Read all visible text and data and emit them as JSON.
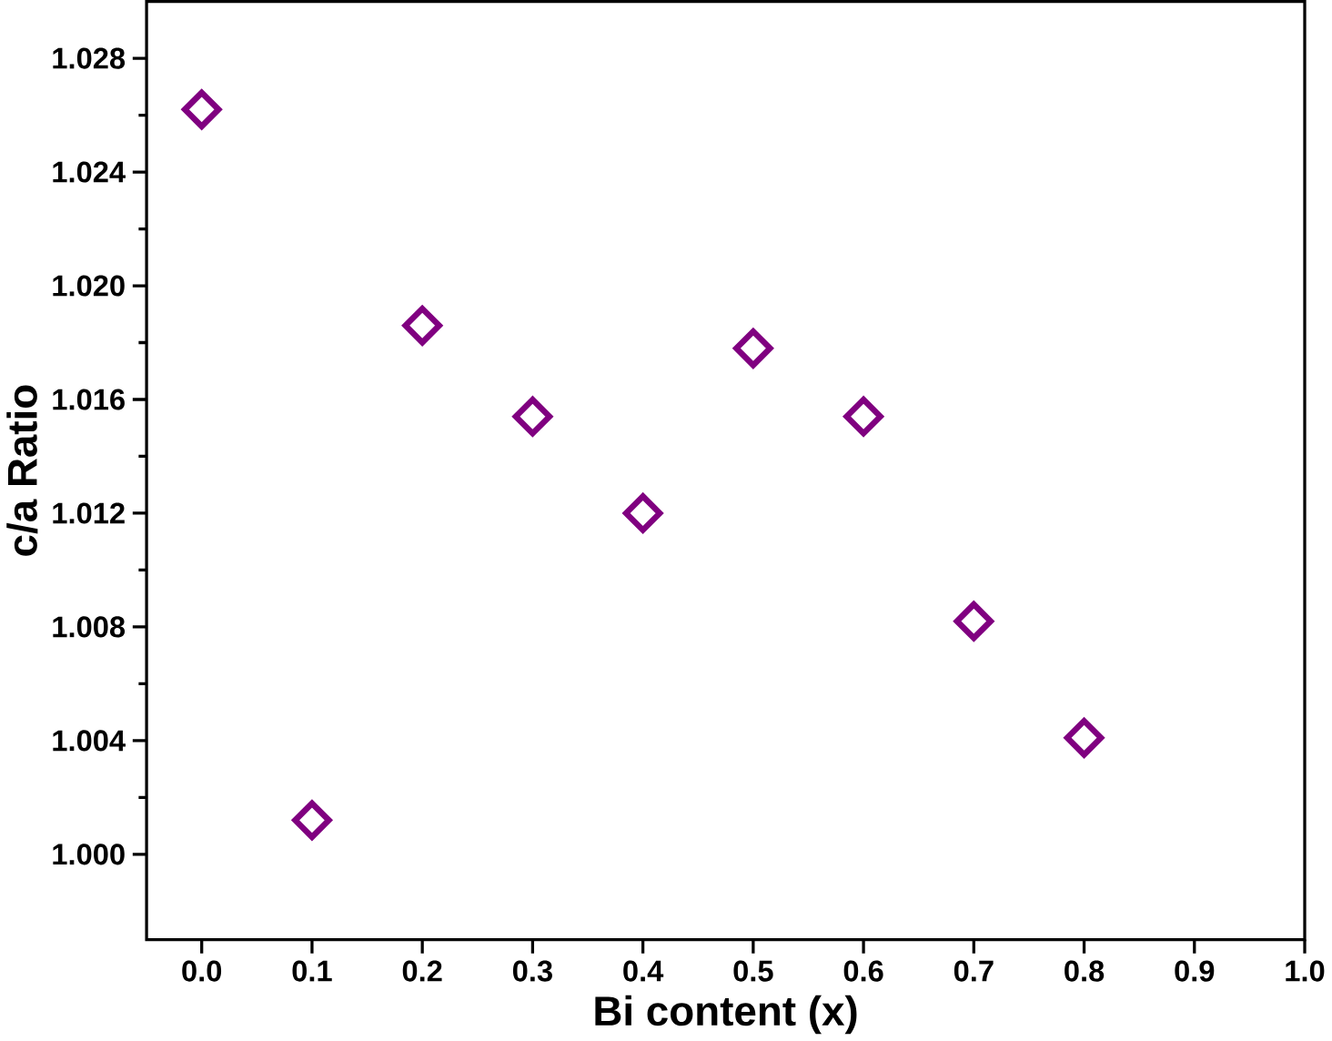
{
  "chart_data": {
    "type": "scatter",
    "xlabel": "Bi content (x)",
    "ylabel": "c/a Ratio",
    "x": [
      0.0,
      0.1,
      0.2,
      0.3,
      0.4,
      0.5,
      0.6,
      0.7,
      0.8
    ],
    "series": [
      {
        "color": "#800080",
        "values": [
          1.0262,
          1.0012,
          1.0186,
          1.0154,
          1.012,
          1.0178,
          1.0154,
          1.0082,
          1.0041
        ]
      }
    ],
    "xlim": [
      -0.05,
      1.0
    ],
    "ylim": [
      0.997,
      1.03
    ],
    "xticks": [
      {
        "value": 0,
        "label": "0.0"
      },
      0.1,
      0.2,
      0.3,
      0.4,
      0.5,
      0.6,
      0.7,
      0.8,
      0.9,
      {
        "value": 1,
        "label": "1.0"
      }
    ],
    "yticks": [
      {
        "value": 1,
        "label": "1.000"
      },
      1.004,
      1.008,
      1.012,
      1.016,
      {
        "value": 1.02,
        "label": "1.020"
      },
      1.024,
      1.028
    ],
    "marker": "diamond"
  }
}
